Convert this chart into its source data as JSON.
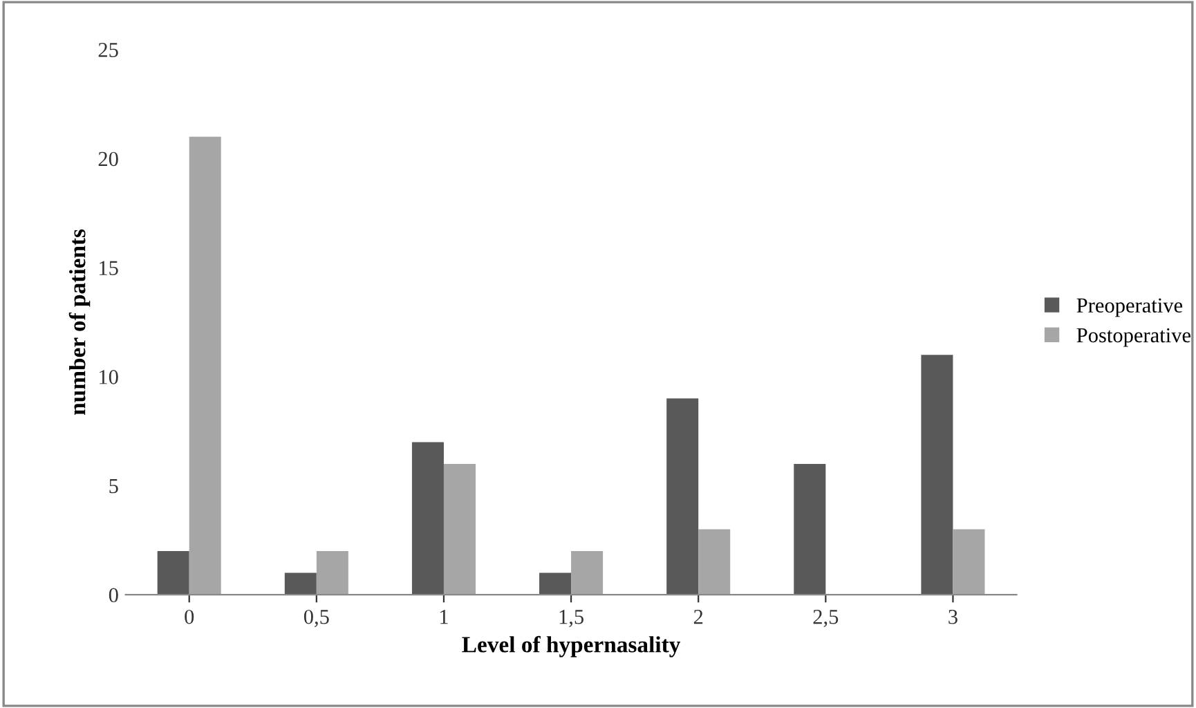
{
  "chart_data": {
    "type": "bar",
    "xlabel": "Level of hypernasality",
    "ylabel": "number of patients",
    "categories": [
      "0",
      "0,5",
      "1",
      "1,5",
      "2",
      "2,5",
      "3"
    ],
    "series": [
      {
        "name": "Preoperative",
        "color": "#595959",
        "values": [
          2,
          1,
          7,
          1,
          9,
          6,
          11
        ]
      },
      {
        "name": "Postoperative",
        "color": "#a6a6a6",
        "values": [
          21,
          2,
          6,
          2,
          3,
          0,
          3
        ]
      }
    ],
    "ylim": [
      0,
      25
    ],
    "yticks": [
      0,
      5,
      10,
      15,
      20,
      25
    ],
    "grid": false,
    "legend": "right"
  }
}
